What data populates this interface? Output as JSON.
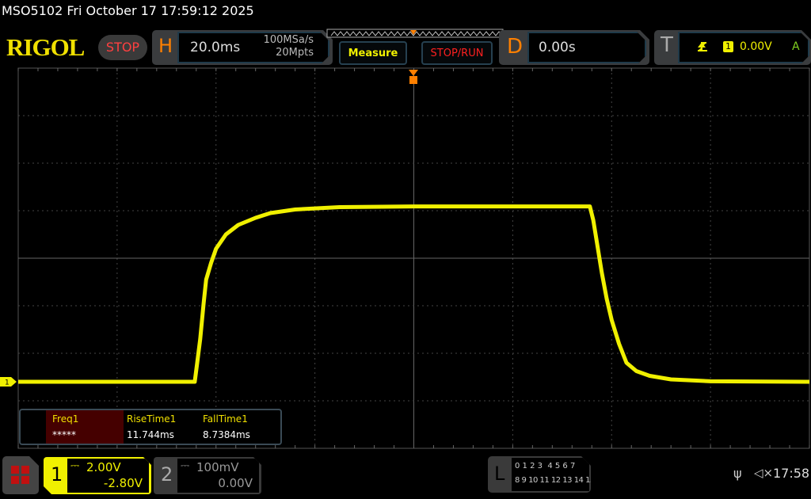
{
  "header": {
    "title": "MSO5102  Fri October 17 17:59:12 2025",
    "logo": "RIGOL",
    "run_state": "STOP"
  },
  "horizontal": {
    "letter": "H",
    "timebase": "20.0ms",
    "sample_rate": "100MSa/s",
    "memory_depth": "20Mpts"
  },
  "buttons": {
    "measure": "Measure",
    "stop_run": "STOP/RUN"
  },
  "delay": {
    "letter": "D",
    "value": "0.00s"
  },
  "trigger": {
    "letter": "T",
    "source": "1",
    "level": "0.00V",
    "mode": "A",
    "slope_icon": "rising-edge-icon"
  },
  "measurements": [
    {
      "label": "Freq1",
      "value": "*****",
      "highlight": true
    },
    {
      "label": "RiseTime1",
      "value": "11.744ms"
    },
    {
      "label": "FallTime1",
      "value": "8.7384ms"
    }
  ],
  "channels": [
    {
      "number": "1",
      "scale": "2.00V",
      "offset": "-2.80V",
      "active": true,
      "color": "#f0f000"
    },
    {
      "number": "2",
      "scale": "100mV",
      "offset": "0.00V",
      "active": false,
      "color": "#888888"
    }
  ],
  "logic": {
    "letter": "L",
    "row1": "0 1 2 3  4 5 6 7",
    "row2": "8 9 10 11 12 13 14 15"
  },
  "status": {
    "clock": "17:58",
    "usb_icon": "usb-icon",
    "sound_icon": "speaker-muted-icon"
  },
  "chart_data": {
    "type": "line",
    "x_unit": "ms",
    "y_unit": "V",
    "time_per_div_ms": 20,
    "volts_per_div": 2.0,
    "ch1_offset_v": -2.8,
    "xlim": [
      -80,
      80
    ],
    "ylim": [
      -2.8,
      13.2
    ],
    "grid": true,
    "series": [
      {
        "color": "#f0f000",
        "points": [
          [
            -80,
            0
          ],
          [
            -44.3,
            0
          ],
          [
            -43.8,
            0.8
          ],
          [
            -43.2,
            1.8
          ],
          [
            -42.5,
            3.3
          ],
          [
            -42,
            4.3
          ],
          [
            -41,
            5.0
          ],
          [
            -40,
            5.6
          ],
          [
            -38,
            6.2
          ],
          [
            -35.5,
            6.6
          ],
          [
            -32,
            6.9
          ],
          [
            -29,
            7.1
          ],
          [
            -24,
            7.25
          ],
          [
            -15,
            7.35
          ],
          [
            0,
            7.38
          ],
          [
            35.6,
            7.38
          ],
          [
            36.3,
            6.8
          ],
          [
            37,
            5.9
          ],
          [
            38,
            4.6
          ],
          [
            39,
            3.5
          ],
          [
            40,
            2.6
          ],
          [
            41.5,
            1.6
          ],
          [
            43,
            0.8
          ],
          [
            45,
            0.45
          ],
          [
            47.7,
            0.25
          ],
          [
            52,
            0.1
          ],
          [
            60,
            0.02
          ],
          [
            80,
            0
          ]
        ]
      }
    ]
  }
}
